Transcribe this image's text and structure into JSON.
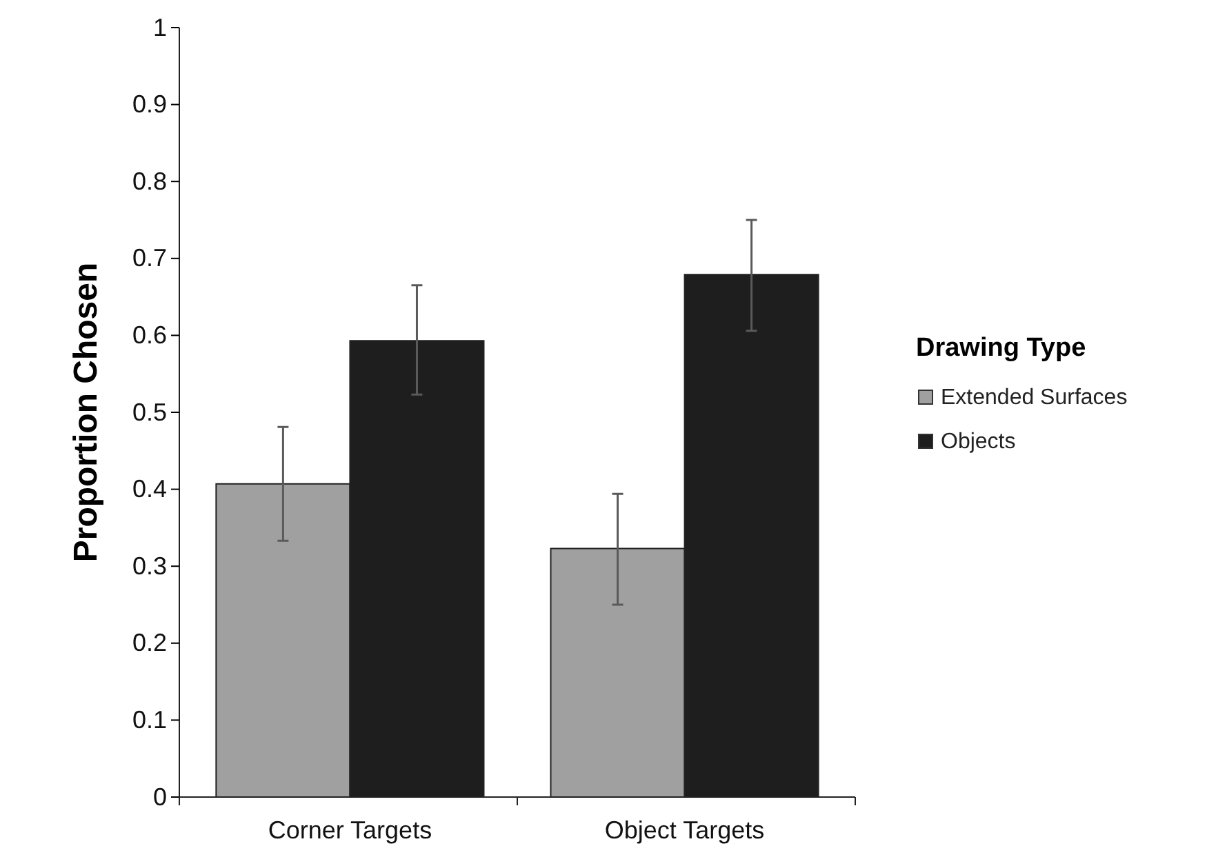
{
  "chart_data": {
    "type": "bar",
    "ylabel": "Proportion Chosen",
    "legend_title": "Drawing Type",
    "categories": [
      "Corner Targets",
      "Object Targets"
    ],
    "series": [
      {
        "name": "Extended Surfaces",
        "color": "#a0a0a0",
        "values": [
          0.407,
          0.323
        ],
        "errors": [
          [
            0.333,
            0.481
          ],
          [
            0.25,
            0.394
          ]
        ]
      },
      {
        "name": "Objects",
        "color": "#1e1e1e",
        "values": [
          0.593,
          0.679
        ],
        "errors": [
          [
            0.523,
            0.665
          ],
          [
            0.606,
            0.75
          ]
        ]
      }
    ],
    "ylim": [
      0,
      1
    ],
    "yticks": [
      0,
      0.1,
      0.2,
      0.3,
      0.4,
      0.5,
      0.6,
      0.7,
      0.8,
      0.9,
      1
    ],
    "legend": "right"
  }
}
